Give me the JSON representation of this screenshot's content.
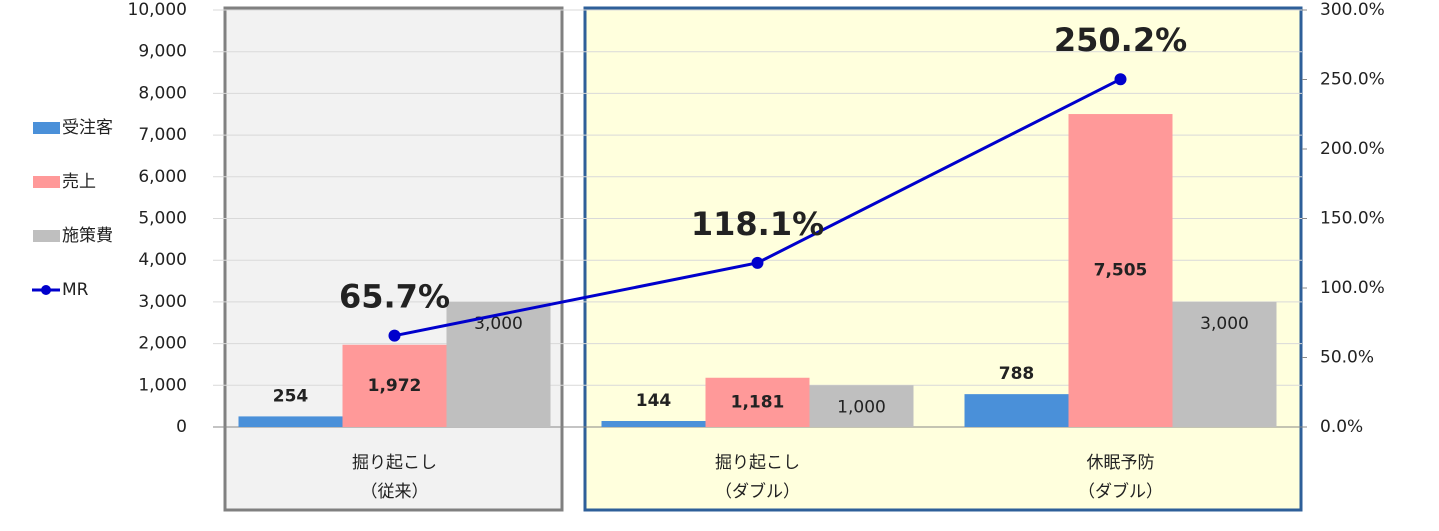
{
  "chart_data": {
    "type": "bar-line",
    "categories": [
      [
        "掘り起こし",
        "（従来）"
      ],
      [
        "掘り起こし",
        "（ダブル）"
      ],
      [
        "休眠予防",
        "（ダブル）"
      ]
    ],
    "series": [
      {
        "name": "受注客",
        "type": "bar",
        "color": "#4a90d9",
        "values": [
          254,
          144,
          788
        ],
        "value_labels": [
          "254",
          "144",
          "788"
        ]
      },
      {
        "name": "売上",
        "type": "bar",
        "color": "#ff9999",
        "values": [
          1972,
          1181,
          7505
        ],
        "value_labels": [
          "1,972",
          "1,181",
          "7,505"
        ]
      },
      {
        "name": "施策費",
        "type": "bar",
        "color": "#bfbfbf",
        "values": [
          3000,
          1000,
          3000
        ],
        "value_labels": [
          "3,000",
          "1,000",
          "3,000"
        ]
      },
      {
        "name": "MR",
        "type": "line",
        "axis": "y2",
        "color": "#0000cc",
        "values": [
          65.7,
          118.1,
          250.2
        ],
        "value_labels": [
          "65.7%",
          "118.1%",
          "250.2%"
        ],
        "label_colors": [
          "#c00000",
          "#0000cc",
          "#0000cc"
        ]
      }
    ],
    "ylim": [
      0,
      10000
    ],
    "yticks": [
      0,
      {
        "value": 1000,
        "label": "1,000"
      },
      {
        "value": 2000,
        "label": "2,000"
      },
      {
        "value": 3000,
        "label": "3,000"
      },
      {
        "value": 4000,
        "label": "4,000"
      },
      {
        "value": 5000,
        "label": "5,000"
      },
      {
        "value": 6000,
        "label": "6,000"
      },
      {
        "value": 7000,
        "label": "7,000"
      },
      {
        "value": 8000,
        "label": "8,000"
      },
      {
        "value": 9000,
        "label": "9,000"
      },
      {
        "value": 10000,
        "label": "10,000"
      }
    ],
    "y2lim": [
      0,
      300
    ],
    "y2ticks": [
      {
        "value": 0,
        "label": "0.0%"
      },
      {
        "value": 50,
        "label": "50.0%"
      },
      {
        "value": 100,
        "label": "100.0%"
      },
      {
        "value": 150,
        "label": "150.0%"
      },
      {
        "value": 200,
        "label": "200.0%"
      },
      {
        "value": 250,
        "label": "250.0%"
      },
      {
        "value": 300,
        "label": "300.0%"
      }
    ],
    "grid": true,
    "legend": "left"
  }
}
